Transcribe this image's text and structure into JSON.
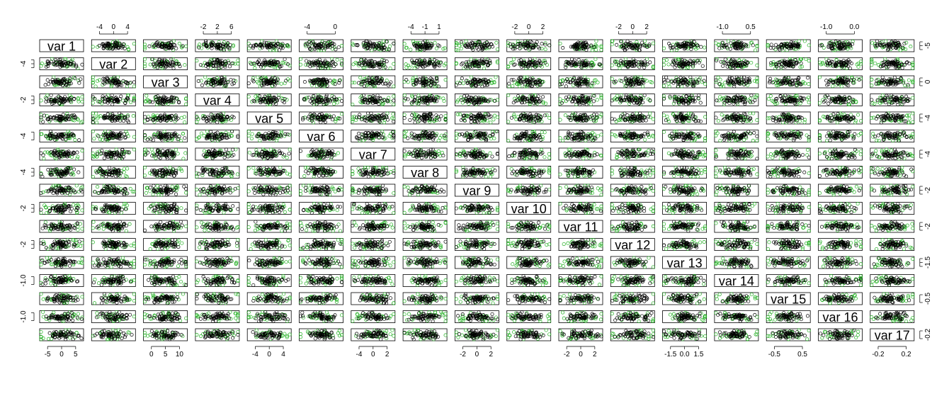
{
  "chart_data": {
    "type": "scatter",
    "subtype": "scatterplot-matrix",
    "title": "",
    "colors": {
      "group_a": "#000000",
      "group_b": "#22b022",
      "frame": "#000000"
    },
    "series": [
      {
        "name": "",
        "color": "#000000"
      },
      {
        "name": "",
        "color": "#22b022"
      }
    ],
    "variables": [
      {
        "label": "var 1",
        "ticks": [
          "-5",
          "0",
          "5"
        ]
      },
      {
        "label": "var 2",
        "ticks": [
          "-4",
          "0",
          "4"
        ]
      },
      {
        "label": "var 3",
        "ticks": [
          "0",
          "5",
          "10"
        ]
      },
      {
        "label": "var 4",
        "ticks": [
          "-2",
          "2",
          "6"
        ]
      },
      {
        "label": "var 5",
        "ticks": [
          "-4",
          "0",
          "4"
        ]
      },
      {
        "label": "var 6",
        "ticks": [
          "-4",
          "0"
        ]
      },
      {
        "label": "var 7",
        "ticks": [
          "-4",
          "0",
          "2"
        ]
      },
      {
        "label": "var 8",
        "ticks": [
          "-4",
          "-1",
          "1"
        ]
      },
      {
        "label": "var 9",
        "ticks": [
          "-2",
          "0",
          "2"
        ]
      },
      {
        "label": "var 10",
        "ticks": [
          "-2",
          "0",
          "2"
        ]
      },
      {
        "label": "var 11",
        "ticks": [
          "-2",
          "0",
          "2"
        ]
      },
      {
        "label": "var 12",
        "ticks": [
          "-2",
          "0",
          "2"
        ]
      },
      {
        "label": "var 13",
        "ticks": [
          "-1.5",
          "0.0",
          "1.5"
        ]
      },
      {
        "label": "var 14",
        "ticks": [
          "-1.0",
          "0.5"
        ]
      },
      {
        "label": "var 15",
        "ticks": [
          "-0.5",
          "0.5"
        ]
      },
      {
        "label": "var 16",
        "ticks": [
          "-1.0",
          "0.0"
        ]
      },
      {
        "label": "var 17",
        "ticks": [
          "-0.2",
          "0.2"
        ]
      }
    ]
  }
}
